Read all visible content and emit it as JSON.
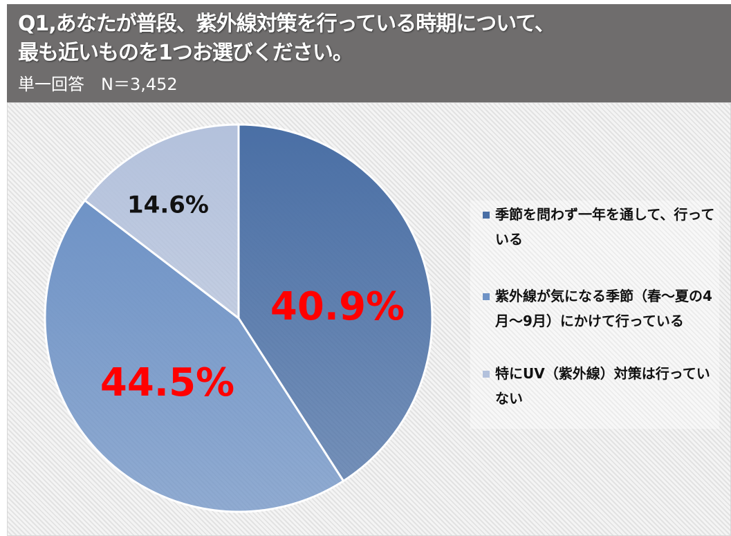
{
  "header": {
    "title_line1": "Q1,あなたが普段、紫外線対策を行っている時期について、",
    "title_line2": "最も近いものを1つお選びください。",
    "subtitle": "単一回答　N＝3,452"
  },
  "chart_data": {
    "type": "pie",
    "start_angle": "top",
    "direction": "clockwise",
    "slices": [
      {
        "label": "季節を問わず一年を通して、行っている",
        "value": 40.9,
        "data_label": "40.9%",
        "color": "#4a6fa5",
        "label_color": "#ff0000"
      },
      {
        "label": "紫外線が気になる季節（春～夏の4月～9月）にかけて行っている",
        "value": 44.5,
        "data_label": "44.5%",
        "color": "#6f93c6",
        "label_color": "#ff0000"
      },
      {
        "label": "特にUV（紫外線）対策は行っていない",
        "value": 14.6,
        "data_label": "14.6%",
        "color": "#b3c1dc",
        "label_color": "#111111"
      }
    ],
    "legend": "right"
  }
}
